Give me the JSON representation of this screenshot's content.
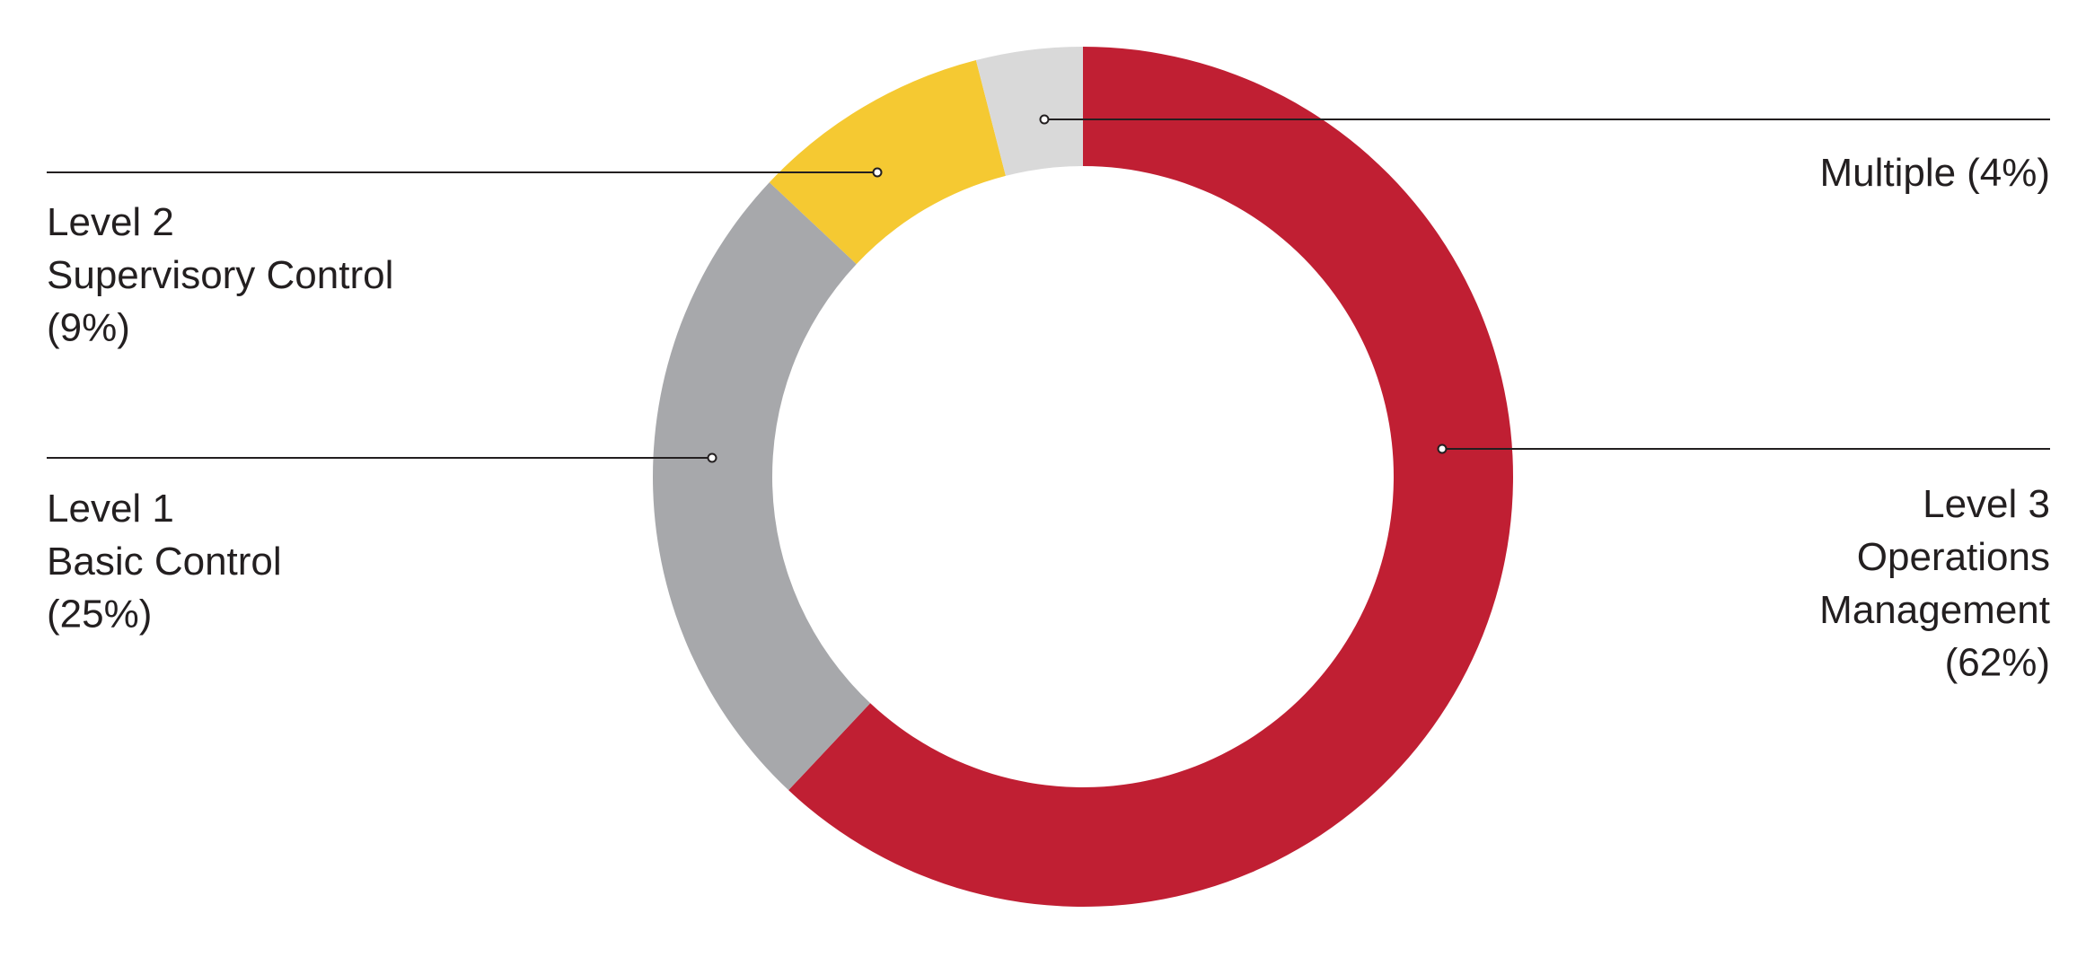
{
  "chart_data": {
    "type": "donut",
    "categories": [
      [
        "Level 3",
        "Operations",
        "Management"
      ],
      [
        "Level 1",
        "Basic Control"
      ],
      [
        "Level 2",
        "Supervisory Control"
      ],
      [
        "Multiple"
      ]
    ],
    "values": [
      62,
      25,
      9,
      4
    ],
    "value_labels": [
      "(62%)",
      "(25%)",
      "(9%)",
      "(4%)"
    ],
    "colors": [
      "#c01f33",
      "#a7a8ab",
      "#f5c932",
      "#d9d9d9"
    ]
  }
}
